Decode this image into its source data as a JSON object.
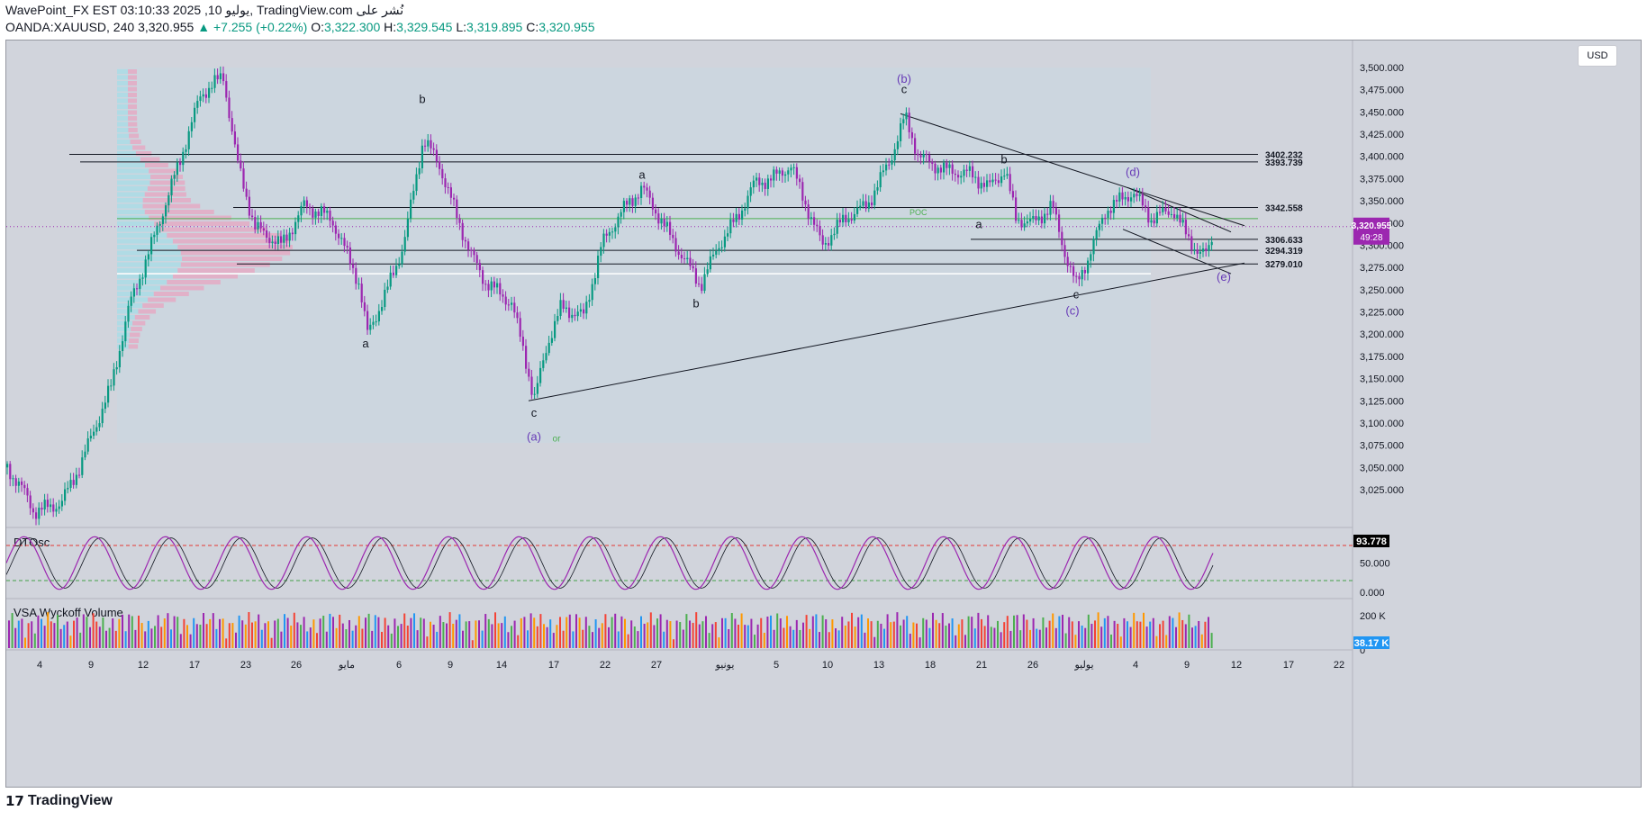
{
  "header": {
    "title": "WavePoint_FX EST 03:10:33 2025 ,10 يوليو, TradingView.com نُشر على",
    "symbol": "OANDA:XAUUSD, 240",
    "last": "3,320.955",
    "change": "+7.255 (+0.22%)",
    "o_label": "O:",
    "o": "3,322.300",
    "h_label": "H:",
    "h": "3,329.545",
    "l_label": "L:",
    "l": "3,319.895",
    "c_label": "C:",
    "c": "3,320.955"
  },
  "currency": "USD",
  "brand": "TradingView",
  "colors": {
    "up": "#089981",
    "down": "#9c27b0",
    "accent": "#9c27b0",
    "poc": "#4caf50",
    "wave_label": "#673ab7"
  },
  "chart_data": [
    {
      "type": "candlestick",
      "symbol": "OANDA:XAUUSD",
      "interval": "240",
      "ylim": [
        3000,
        3520
      ],
      "y_ticks": [
        "3,500.000",
        "3,475.000",
        "3,450.000",
        "3,425.000",
        "3,400.000",
        "3,375.000",
        "3,350.000",
        "3,325.000",
        "3,300.000",
        "3,275.000",
        "3,250.000",
        "3,225.000",
        "3,200.000",
        "3,175.000",
        "3,150.000",
        "3,125.000",
        "3,100.000",
        "3,075.000",
        "3,050.000",
        "3,025.000"
      ],
      "x_ticks": [
        "4",
        "9",
        "12",
        "17",
        "23",
        "26",
        "مايو",
        "6",
        "9",
        "14",
        "17",
        "22",
        "27",
        "يونيو",
        "5",
        "10",
        "13",
        "18",
        "21",
        "26",
        "يوليو",
        "4",
        "9",
        "12",
        "17",
        "22"
      ],
      "price_points": [
        [
          0,
          3050
        ],
        [
          20,
          3020
        ],
        [
          30,
          3000
        ],
        [
          60,
          3010
        ],
        [
          80,
          3050
        ],
        [
          115,
          3140
        ],
        [
          135,
          3230
        ],
        [
          160,
          3300
        ],
        [
          190,
          3390
        ],
        [
          215,
          3470
        ],
        [
          240,
          3490
        ],
        [
          255,
          3395
        ],
        [
          275,
          3320
        ],
        [
          305,
          3300
        ],
        [
          330,
          3345
        ],
        [
          360,
          3330
        ],
        [
          390,
          3260
        ],
        [
          400,
          3200
        ],
        [
          420,
          3245
        ],
        [
          440,
          3300
        ],
        [
          462,
          3420
        ],
        [
          480,
          3390
        ],
        [
          500,
          3330
        ],
        [
          515,
          3290
        ],
        [
          530,
          3260
        ],
        [
          560,
          3235
        ],
        [
          575,
          3175
        ],
        [
          585,
          3125
        ],
        [
          600,
          3190
        ],
        [
          615,
          3230
        ],
        [
          640,
          3220
        ],
        [
          660,
          3300
        ],
        [
          680,
          3335
        ],
        [
          705,
          3365
        ],
        [
          725,
          3330
        ],
        [
          745,
          3295
        ],
        [
          770,
          3255
        ],
        [
          790,
          3300
        ],
        [
          810,
          3330
        ],
        [
          830,
          3370
        ],
        [
          850,
          3375
        ],
        [
          870,
          3390
        ],
        [
          895,
          3325
        ],
        [
          905,
          3300
        ],
        [
          930,
          3330
        ],
        [
          955,
          3345
        ],
        [
          980,
          3395
        ],
        [
          997,
          3445
        ],
        [
          1012,
          3400
        ],
        [
          1040,
          3385
        ],
        [
          1070,
          3380
        ],
        [
          1090,
          3365
        ],
        [
          1108,
          3385
        ],
        [
          1120,
          3330
        ],
        [
          1140,
          3325
        ],
        [
          1160,
          3345
        ],
        [
          1175,
          3290
        ],
        [
          1187,
          3255
        ],
        [
          1200,
          3285
        ],
        [
          1220,
          3340
        ],
        [
          1250,
          3360
        ],
        [
          1270,
          3330
        ],
        [
          1295,
          3340
        ],
        [
          1310,
          3310
        ],
        [
          1325,
          3290
        ],
        [
          1333,
          3290
        ],
        [
          1340,
          3321
        ]
      ],
      "current_price": "3,320.955",
      "countdown": "49:28",
      "levels": [
        {
          "label": "3402.232",
          "value": 3402.232
        },
        {
          "label": "3393.739",
          "value": 3393.739
        },
        {
          "label": "3342.558",
          "value": 3342.558
        },
        {
          "label": "3306.633",
          "value": 3306.633
        },
        {
          "label": "3294.319",
          "value": 3294.319
        },
        {
          "label": "3279.010",
          "value": 3279.01
        }
      ],
      "poc": {
        "label": "POC",
        "value": 3330
      },
      "wave_labels": [
        {
          "text": "a",
          "x": 399,
          "y": 3185
        },
        {
          "text": "b",
          "x": 462,
          "y": 3460
        },
        {
          "text": "c",
          "x": 586,
          "y": 3107
        },
        {
          "text": "(a)",
          "x": 586,
          "y": 3080
        },
        {
          "text": "or",
          "x": 611,
          "y": 3079
        },
        {
          "text": "a",
          "x": 706,
          "y": 3375
        },
        {
          "text": "b",
          "x": 766,
          "y": 3230
        },
        {
          "text": "(b)",
          "x": 997,
          "y": 3483
        },
        {
          "text": "c",
          "x": 997,
          "y": 3471
        },
        {
          "text": "b",
          "x": 1108,
          "y": 3392
        },
        {
          "text": "a",
          "x": 1080,
          "y": 3319
        },
        {
          "text": "c",
          "x": 1188,
          "y": 3240
        },
        {
          "text": "(c)",
          "x": 1184,
          "y": 3222
        },
        {
          "text": "(d)",
          "x": 1251,
          "y": 3378
        },
        {
          "text": "(e)",
          "x": 1352,
          "y": 3260
        }
      ]
    },
    {
      "type": "line",
      "title": "DTOsc",
      "ylim": [
        0,
        100
      ],
      "y_ticks": [
        "50.000",
        "0.000"
      ],
      "last_value": "93.778",
      "overbought": 80,
      "oversold": 20
    },
    {
      "type": "bar",
      "title": "VSA Wyckoff Volume",
      "y_ticks": [
        "200 K",
        "0"
      ],
      "last_value": "38.17 K"
    }
  ]
}
